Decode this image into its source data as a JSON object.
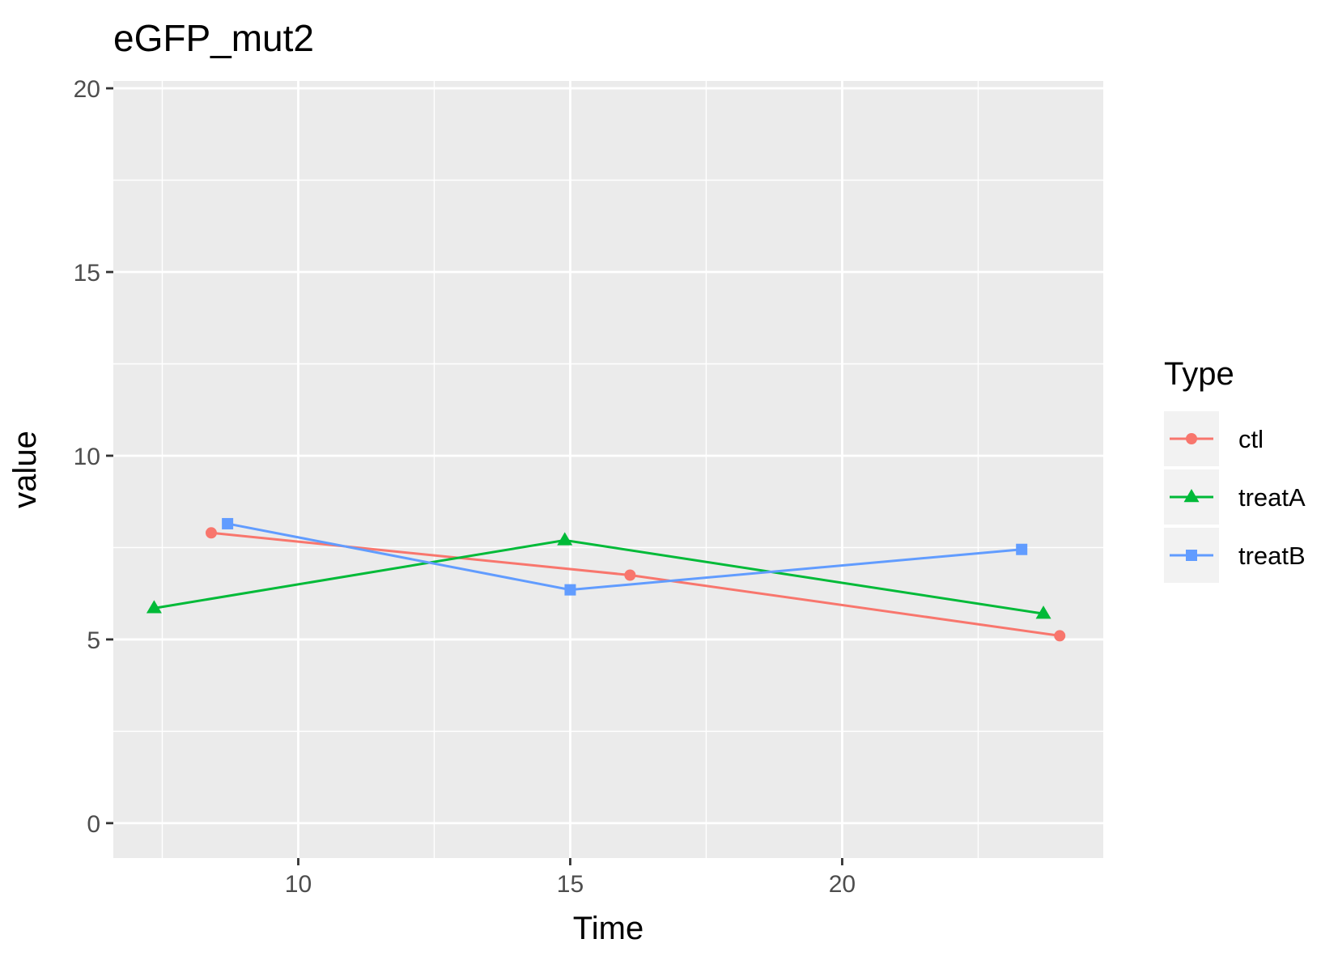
{
  "chart_data": {
    "type": "line",
    "title": "eGFP_mut2",
    "xlabel": "Time",
    "ylabel": "value",
    "xlim": [
      6.6,
      24.8
    ],
    "ylim": [
      -0.95,
      20.2
    ],
    "xticks": [
      10,
      15,
      20
    ],
    "yticks": [
      0,
      5,
      10,
      15,
      20
    ],
    "grid": true,
    "legend": {
      "title": "Type",
      "position": "right"
    },
    "series": [
      {
        "name": "ctl",
        "color": "#F8766D",
        "marker": "circle",
        "x": [
          8.4,
          16.1,
          24.0
        ],
        "y": [
          7.9,
          6.75,
          5.1
        ]
      },
      {
        "name": "treatA",
        "color": "#00BA38",
        "marker": "triangle",
        "x": [
          7.35,
          14.9,
          23.7
        ],
        "y": [
          5.85,
          7.7,
          5.7
        ]
      },
      {
        "name": "treatB",
        "color": "#619CFF",
        "marker": "square",
        "x": [
          8.7,
          15.0,
          23.3
        ],
        "y": [
          8.15,
          6.35,
          7.45
        ]
      }
    ]
  }
}
